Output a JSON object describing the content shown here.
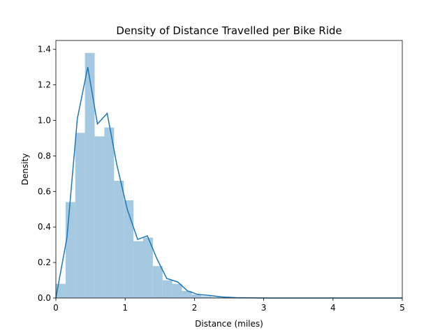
{
  "chart_data": {
    "type": "bar",
    "title": "Density of Distance Travelled per Bike Ride",
    "xlabel": "Distance (miles)",
    "ylabel": "Density",
    "xlim": [
      0,
      5
    ],
    "ylim": [
      0,
      1.45
    ],
    "xticks": [
      0,
      1,
      2,
      3,
      4,
      5
    ],
    "yticks": [
      0.0,
      0.2,
      0.4,
      0.6,
      0.8,
      1.0,
      1.2,
      1.4
    ],
    "xtick_labels": [
      "0",
      "1",
      "2",
      "3",
      "4",
      "5"
    ],
    "ytick_labels": [
      "0.0",
      "0.2",
      "0.4",
      "0.6",
      "0.8",
      "1.0",
      "1.2",
      "1.4"
    ],
    "grid": false,
    "histogram": {
      "bin_width": 0.14,
      "bins": [
        {
          "x0": 0.0,
          "x1": 0.14,
          "density": 0.08
        },
        {
          "x0": 0.14,
          "x1": 0.28,
          "density": 0.54
        },
        {
          "x0": 0.28,
          "x1": 0.42,
          "density": 0.93
        },
        {
          "x0": 0.42,
          "x1": 0.56,
          "density": 1.38
        },
        {
          "x0": 0.56,
          "x1": 0.7,
          "density": 0.91
        },
        {
          "x0": 0.7,
          "x1": 0.84,
          "density": 0.96
        },
        {
          "x0": 0.84,
          "x1": 0.98,
          "density": 0.66
        },
        {
          "x0": 0.98,
          "x1": 1.12,
          "density": 0.55
        },
        {
          "x0": 1.12,
          "x1": 1.26,
          "density": 0.32
        },
        {
          "x0": 1.26,
          "x1": 1.4,
          "density": 0.34
        },
        {
          "x0": 1.4,
          "x1": 1.54,
          "density": 0.18
        },
        {
          "x0": 1.54,
          "x1": 1.68,
          "density": 0.1
        },
        {
          "x0": 1.68,
          "x1": 1.82,
          "density": 0.08
        },
        {
          "x0": 1.82,
          "x1": 1.96,
          "density": 0.04
        },
        {
          "x0": 1.96,
          "x1": 2.1,
          "density": 0.02
        },
        {
          "x0": 2.1,
          "x1": 2.24,
          "density": 0.01
        },
        {
          "x0": 2.24,
          "x1": 2.38,
          "density": 0.005
        },
        {
          "x0": 2.38,
          "x1": 2.52,
          "density": 0.004
        },
        {
          "x0": 2.52,
          "x1": 2.66,
          "density": 0.003
        },
        {
          "x0": 2.66,
          "x1": 2.8,
          "density": 0.002
        },
        {
          "x0": 2.8,
          "x1": 2.94,
          "density": 0.001
        },
        {
          "x0": 2.94,
          "x1": 3.08,
          "density": 0.001
        },
        {
          "x0": 3.08,
          "x1": 3.22,
          "density": 0.0005
        }
      ]
    },
    "kde": {
      "x": [
        0.0,
        0.16,
        0.31,
        0.46,
        0.6,
        0.74,
        0.88,
        1.03,
        1.18,
        1.32,
        1.46,
        1.6,
        1.76,
        1.9,
        2.05,
        2.2,
        2.4,
        2.6,
        3.0,
        4.0,
        5.0
      ],
      "y": [
        0.0,
        0.34,
        1.01,
        1.3,
        0.98,
        1.04,
        0.75,
        0.5,
        0.33,
        0.35,
        0.22,
        0.11,
        0.09,
        0.04,
        0.02,
        0.015,
        0.006,
        0.002,
        0.0,
        0.0,
        0.0
      ]
    },
    "colors": {
      "bars": "#a4c9e1",
      "line": "#1f77b4",
      "axis": "#000000",
      "background": "#ffffff"
    }
  }
}
